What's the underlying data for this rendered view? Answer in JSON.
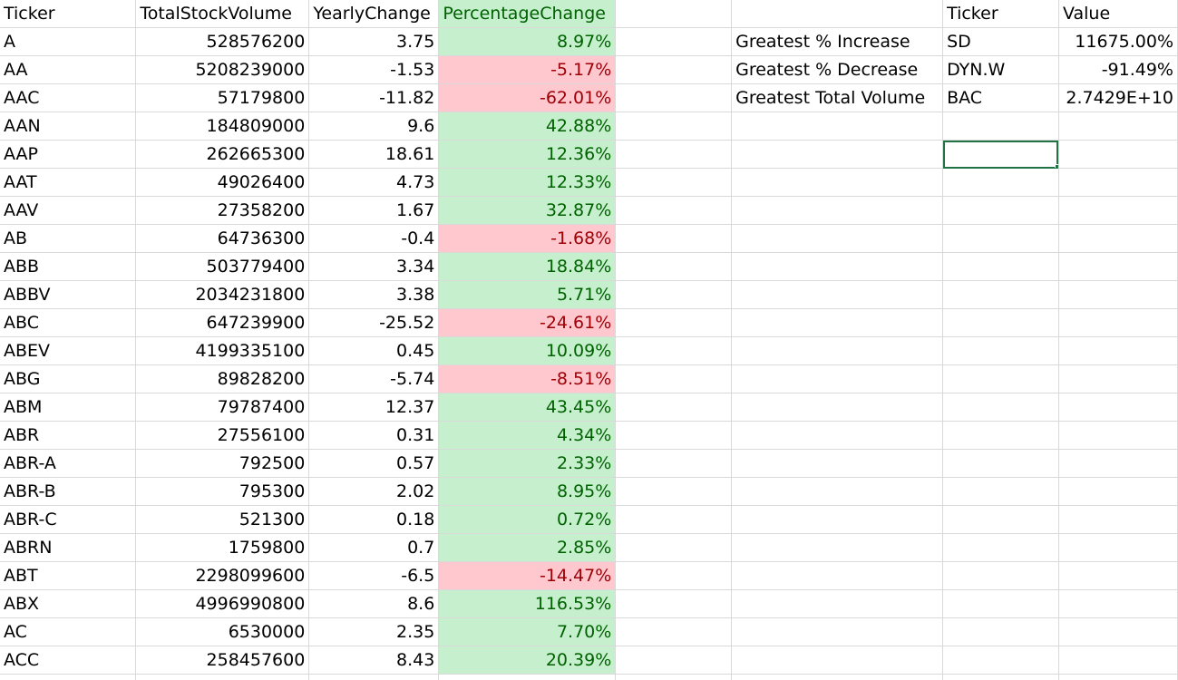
{
  "columns": {
    "left": [
      "Ticker",
      "TotalStockVolume",
      "YearlyChange",
      "PercentageChange"
    ],
    "summary": [
      "Ticker",
      "Value"
    ]
  },
  "rows": [
    {
      "ticker": "A",
      "volume": "528576200",
      "yearly": "3.75",
      "pct": "8.97%",
      "direction": "pos"
    },
    {
      "ticker": "AA",
      "volume": "5208239000",
      "yearly": "-1.53",
      "pct": "-5.17%",
      "direction": "neg"
    },
    {
      "ticker": "AAC",
      "volume": "57179800",
      "yearly": "-11.82",
      "pct": "-62.01%",
      "direction": "neg"
    },
    {
      "ticker": "AAN",
      "volume": "184809000",
      "yearly": "9.6",
      "pct": "42.88%",
      "direction": "pos"
    },
    {
      "ticker": "AAP",
      "volume": "262665300",
      "yearly": "18.61",
      "pct": "12.36%",
      "direction": "pos"
    },
    {
      "ticker": "AAT",
      "volume": "49026400",
      "yearly": "4.73",
      "pct": "12.33%",
      "direction": "pos"
    },
    {
      "ticker": "AAV",
      "volume": "27358200",
      "yearly": "1.67",
      "pct": "32.87%",
      "direction": "pos"
    },
    {
      "ticker": "AB",
      "volume": "64736300",
      "yearly": "-0.4",
      "pct": "-1.68%",
      "direction": "neg"
    },
    {
      "ticker": "ABB",
      "volume": "503779400",
      "yearly": "3.34",
      "pct": "18.84%",
      "direction": "pos"
    },
    {
      "ticker": "ABBV",
      "volume": "2034231800",
      "yearly": "3.38",
      "pct": "5.71%",
      "direction": "pos"
    },
    {
      "ticker": "ABC",
      "volume": "647239900",
      "yearly": "-25.52",
      "pct": "-24.61%",
      "direction": "neg"
    },
    {
      "ticker": "ABEV",
      "volume": "4199335100",
      "yearly": "0.45",
      "pct": "10.09%",
      "direction": "pos"
    },
    {
      "ticker": "ABG",
      "volume": "89828200",
      "yearly": "-5.74",
      "pct": "-8.51%",
      "direction": "neg"
    },
    {
      "ticker": "ABM",
      "volume": "79787400",
      "yearly": "12.37",
      "pct": "43.45%",
      "direction": "pos"
    },
    {
      "ticker": "ABR",
      "volume": "27556100",
      "yearly": "0.31",
      "pct": "4.34%",
      "direction": "pos"
    },
    {
      "ticker": "ABR-A",
      "volume": "792500",
      "yearly": "0.57",
      "pct": "2.33%",
      "direction": "pos"
    },
    {
      "ticker": "ABR-B",
      "volume": "795300",
      "yearly": "2.02",
      "pct": "8.95%",
      "direction": "pos"
    },
    {
      "ticker": "ABR-C",
      "volume": "521300",
      "yearly": "0.18",
      "pct": "0.72%",
      "direction": "pos"
    },
    {
      "ticker": "ABRN",
      "volume": "1759800",
      "yearly": "0.7",
      "pct": "2.85%",
      "direction": "pos"
    },
    {
      "ticker": "ABT",
      "volume": "2298099600",
      "yearly": "-6.5",
      "pct": "-14.47%",
      "direction": "neg"
    },
    {
      "ticker": "ABX",
      "volume": "4996990800",
      "yearly": "8.6",
      "pct": "116.53%",
      "direction": "pos"
    },
    {
      "ticker": "AC",
      "volume": "6530000",
      "yearly": "2.35",
      "pct": "7.70%",
      "direction": "pos"
    },
    {
      "ticker": "ACC",
      "volume": "258457600",
      "yearly": "8.43",
      "pct": "20.39%",
      "direction": "pos"
    }
  ],
  "summary": [
    {
      "label": "Greatest % Increase",
      "ticker": "SD",
      "value": "11675.00%"
    },
    {
      "label": "Greatest % Decrease",
      "ticker": "DYN.W",
      "value": "-91.49%"
    },
    {
      "label": "Greatest Total Volume",
      "ticker": "BAC",
      "value": "2.7429E+10"
    }
  ],
  "colors": {
    "positive_fill": "#c6efce",
    "positive_text": "#006100",
    "negative_fill": "#ffc7ce",
    "negative_text": "#9c0006",
    "selection": "#217346",
    "gridline": "#d9d9d9"
  }
}
